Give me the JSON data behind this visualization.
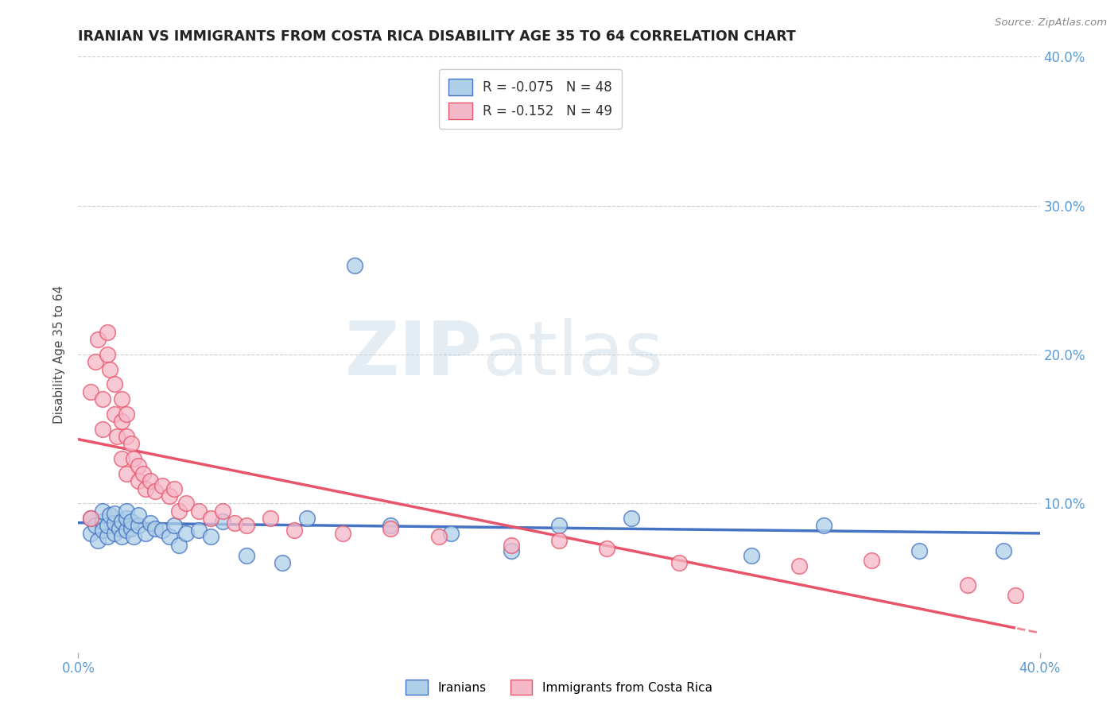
{
  "title": "IRANIAN VS IMMIGRANTS FROM COSTA RICA DISABILITY AGE 35 TO 64 CORRELATION CHART",
  "source": "Source: ZipAtlas.com",
  "ylabel": "Disability Age 35 to 64",
  "xlim": [
    0.0,
    0.4
  ],
  "ylim": [
    0.0,
    0.4
  ],
  "ytick_vals": [
    0.1,
    0.2,
    0.3,
    0.4
  ],
  "ytick_labels": [
    "10.0%",
    "20.0%",
    "30.0%",
    "40.0%"
  ],
  "xtick_vals": [
    0.0,
    0.4
  ],
  "xtick_labels": [
    "0.0%",
    "40.0%"
  ],
  "legend_line1": "R = -0.075   N = 48",
  "legend_line2": "R = -0.152   N = 49",
  "iranians_color": "#aecfe8",
  "costa_rica_color": "#f5b8c8",
  "trend_iranian_color": "#4472c4",
  "trend_costa_rica_color": "#e8546a",
  "watermark_zip": "ZIP",
  "watermark_atlas": "atlas",
  "iranian_x": [
    0.005,
    0.005,
    0.007,
    0.008,
    0.01,
    0.01,
    0.01,
    0.012,
    0.012,
    0.013,
    0.015,
    0.015,
    0.015,
    0.017,
    0.018,
    0.018,
    0.02,
    0.02,
    0.02,
    0.022,
    0.022,
    0.023,
    0.025,
    0.025,
    0.028,
    0.03,
    0.032,
    0.035,
    0.038,
    0.04,
    0.042,
    0.045,
    0.05,
    0.055,
    0.06,
    0.07,
    0.085,
    0.095,
    0.115,
    0.13,
    0.155,
    0.18,
    0.2,
    0.23,
    0.28,
    0.31,
    0.35,
    0.385
  ],
  "iranian_y": [
    0.08,
    0.09,
    0.085,
    0.075,
    0.088,
    0.095,
    0.082,
    0.078,
    0.085,
    0.092,
    0.08,
    0.087,
    0.093,
    0.083,
    0.088,
    0.078,
    0.082,
    0.09,
    0.095,
    0.083,
    0.088,
    0.078,
    0.085,
    0.092,
    0.08,
    0.087,
    0.083,
    0.082,
    0.078,
    0.085,
    0.072,
    0.08,
    0.082,
    0.078,
    0.088,
    0.065,
    0.06,
    0.09,
    0.26,
    0.085,
    0.08,
    0.068,
    0.085,
    0.09,
    0.065,
    0.085,
    0.068,
    0.068
  ],
  "costa_rica_x": [
    0.005,
    0.005,
    0.007,
    0.008,
    0.01,
    0.01,
    0.012,
    0.012,
    0.013,
    0.015,
    0.015,
    0.016,
    0.018,
    0.018,
    0.018,
    0.02,
    0.02,
    0.02,
    0.022,
    0.023,
    0.025,
    0.025,
    0.027,
    0.028,
    0.03,
    0.032,
    0.035,
    0.038,
    0.04,
    0.042,
    0.045,
    0.05,
    0.055,
    0.06,
    0.065,
    0.07,
    0.08,
    0.09,
    0.11,
    0.13,
    0.15,
    0.18,
    0.2,
    0.22,
    0.25,
    0.3,
    0.33,
    0.37,
    0.39
  ],
  "costa_rica_y": [
    0.09,
    0.175,
    0.195,
    0.21,
    0.17,
    0.15,
    0.2,
    0.215,
    0.19,
    0.18,
    0.16,
    0.145,
    0.17,
    0.155,
    0.13,
    0.16,
    0.145,
    0.12,
    0.14,
    0.13,
    0.125,
    0.115,
    0.12,
    0.11,
    0.115,
    0.108,
    0.112,
    0.105,
    0.11,
    0.095,
    0.1,
    0.095,
    0.09,
    0.095,
    0.087,
    0.085,
    0.09,
    0.082,
    0.08,
    0.083,
    0.078,
    0.072,
    0.075,
    0.07,
    0.06,
    0.058,
    0.062,
    0.045,
    0.038
  ]
}
